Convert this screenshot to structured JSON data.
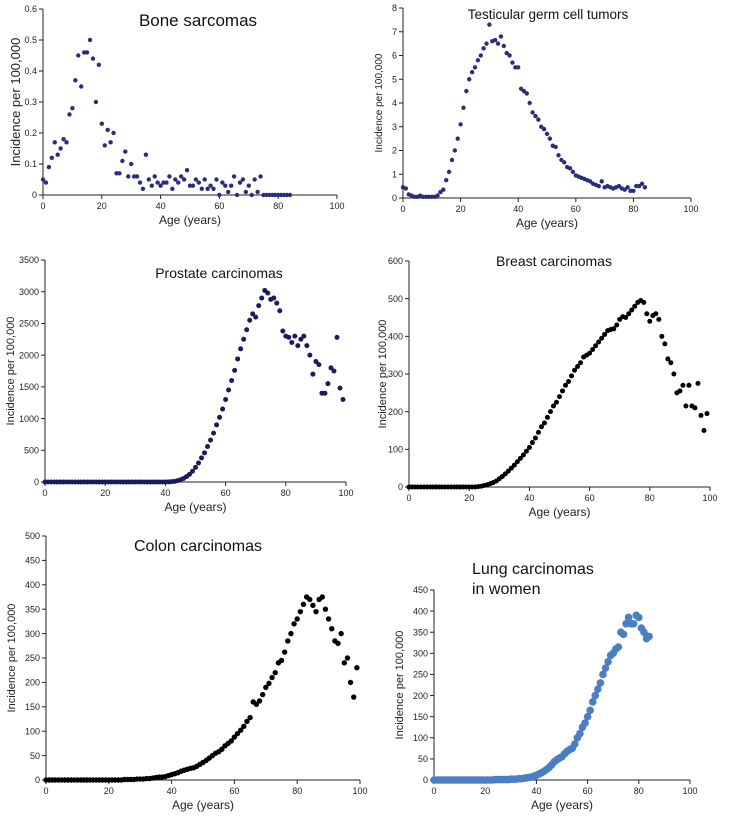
{
  "chart_data": [
    {
      "id": "bone",
      "type": "scatter",
      "title": "Bone sarcomas",
      "xlabel": "Age (years)",
      "ylabel": "Incidence per 100,000",
      "xlim": [
        0,
        100
      ],
      "ylim": [
        0,
        0.6
      ],
      "xticks": [
        0,
        20,
        40,
        60,
        80,
        100
      ],
      "yticks": [
        0,
        0.1,
        0.2,
        0.3,
        0.4,
        0.5,
        0.6
      ],
      "yticklabels": [
        "0",
        "0.1",
        "0.2",
        "0.3",
        "0.4",
        "0.5",
        "0.6"
      ],
      "color": "#2b2d7a",
      "x": [
        0,
        1,
        2,
        3,
        4,
        5,
        6,
        7,
        8,
        9,
        10,
        11,
        12,
        13,
        14,
        15,
        16,
        17,
        18,
        19,
        20,
        21,
        22,
        23,
        24,
        25,
        26,
        27,
        28,
        29,
        30,
        31,
        32,
        33,
        34,
        35,
        36,
        37,
        38,
        39,
        40,
        41,
        42,
        43,
        44,
        45,
        46,
        47,
        48,
        49,
        50,
        51,
        52,
        53,
        54,
        55,
        56,
        57,
        58,
        59,
        60,
        61,
        62,
        63,
        64,
        65,
        66,
        67,
        68,
        69,
        70,
        71,
        72,
        73,
        74,
        75,
        76,
        77,
        78,
        79,
        80,
        81,
        82,
        83,
        84
      ],
      "y": [
        0.05,
        0.04,
        0.09,
        0.12,
        0.17,
        0.13,
        0.15,
        0.18,
        0.17,
        0.26,
        0.28,
        0.37,
        0.45,
        0.35,
        0.46,
        0.46,
        0.5,
        0.44,
        0.3,
        0.42,
        0.23,
        0.16,
        0.21,
        0.17,
        0.2,
        0.07,
        0.07,
        0.11,
        0.14,
        0.06,
        0.1,
        0.06,
        0.06,
        0.04,
        0.02,
        0.13,
        0.05,
        0.03,
        0.06,
        0.04,
        0.03,
        0.04,
        0.04,
        0.06,
        0.02,
        0.05,
        0.04,
        0.06,
        0.05,
        0.08,
        0.03,
        0.03,
        0.05,
        0.04,
        0.02,
        0.05,
        0.02,
        0.03,
        0.02,
        0.05,
        0.0,
        0.04,
        0.03,
        0.01,
        0.03,
        0.06,
        0.0,
        0.04,
        0.05,
        0.01,
        0.03,
        0.0,
        0.05,
        0.01,
        0.06,
        0.0,
        0.0,
        0.0,
        0.0,
        0.0,
        0.0,
        0.0,
        0.0,
        0.0,
        0.0
      ]
    },
    {
      "id": "testicular",
      "type": "scatter",
      "title": "Testicular germ cell tumors",
      "xlabel": "Age (years)",
      "ylabel": "Incidence per 100,000",
      "xlim": [
        0,
        100
      ],
      "ylim": [
        0,
        8
      ],
      "xticks": [
        0,
        20,
        40,
        60,
        80,
        100
      ],
      "yticks": [
        0,
        1,
        2,
        3,
        4,
        5,
        6,
        7,
        8
      ],
      "yticklabels": [
        "0",
        "1",
        "2",
        "3",
        "4",
        "5",
        "6",
        "7",
        "8"
      ],
      "color": "#2b2d7a",
      "x": [
        0,
        1,
        2,
        3,
        4,
        5,
        6,
        7,
        8,
        9,
        10,
        11,
        12,
        13,
        14,
        15,
        16,
        17,
        18,
        19,
        20,
        21,
        22,
        23,
        24,
        25,
        26,
        27,
        28,
        29,
        30,
        31,
        32,
        33,
        34,
        35,
        36,
        37,
        38,
        39,
        40,
        41,
        42,
        43,
        44,
        45,
        46,
        47,
        48,
        49,
        50,
        51,
        52,
        53,
        54,
        55,
        56,
        57,
        58,
        59,
        60,
        61,
        62,
        63,
        64,
        65,
        66,
        67,
        68,
        69,
        70,
        71,
        72,
        73,
        74,
        75,
        76,
        77,
        78,
        79,
        80,
        81,
        82,
        83,
        84
      ],
      "y": [
        0.45,
        0.4,
        0.15,
        0.1,
        0.05,
        0.05,
        0.1,
        0.05,
        0.05,
        0.05,
        0.05,
        0.05,
        0.1,
        0.25,
        0.35,
        0.75,
        1.1,
        1.6,
        2.0,
        2.5,
        3.1,
        3.8,
        4.5,
        5.0,
        5.3,
        5.5,
        5.8,
        6.0,
        6.3,
        6.5,
        7.3,
        6.6,
        6.65,
        6.5,
        6.8,
        6.4,
        6.1,
        6.0,
        5.7,
        5.5,
        5.5,
        4.6,
        4.5,
        4.4,
        4.0,
        3.6,
        3.45,
        3.3,
        3.0,
        2.9,
        2.7,
        2.5,
        2.2,
        2.15,
        1.8,
        1.6,
        1.5,
        1.3,
        1.25,
        1.1,
        0.95,
        0.9,
        0.85,
        0.8,
        0.75,
        0.7,
        0.6,
        0.55,
        0.5,
        0.7,
        0.45,
        0.5,
        0.45,
        0.4,
        0.45,
        0.5,
        0.4,
        0.35,
        0.45,
        0.3,
        0.3,
        0.5,
        0.5,
        0.6,
        0.45
      ]
    },
    {
      "id": "prostate",
      "type": "scatter",
      "title": "Prostate carcinomas",
      "xlabel": "Age (years)",
      "ylabel": "Incidence per 100,000",
      "xlim": [
        0,
        100
      ],
      "ylim": [
        0,
        3500
      ],
      "xticks": [
        0,
        20,
        40,
        60,
        80,
        100
      ],
      "yticks": [
        0,
        500,
        1000,
        1500,
        2000,
        2500,
        3000,
        3500
      ],
      "yticklabels": [
        "0",
        "500",
        "1000",
        "1500",
        "2000",
        "2500",
        "3000",
        "3500"
      ],
      "color": "#1a1a5c",
      "x": [
        0,
        1,
        2,
        3,
        4,
        5,
        6,
        7,
        8,
        9,
        10,
        11,
        12,
        13,
        14,
        15,
        16,
        17,
        18,
        19,
        20,
        21,
        22,
        23,
        24,
        25,
        26,
        27,
        28,
        29,
        30,
        31,
        32,
        33,
        34,
        35,
        36,
        37,
        38,
        39,
        40,
        41,
        42,
        43,
        44,
        45,
        46,
        47,
        48,
        49,
        50,
        51,
        52,
        53,
        54,
        55,
        56,
        57,
        58,
        59,
        60,
        61,
        62,
        63,
        64,
        65,
        66,
        67,
        68,
        69,
        70,
        71,
        72,
        73,
        74,
        75,
        76,
        77,
        78,
        79,
        80,
        81,
        82,
        83,
        84,
        85,
        86,
        87,
        88,
        89,
        90,
        91,
        92,
        93,
        94,
        95,
        96,
        97,
        98,
        99
      ],
      "y": [
        0,
        0,
        0,
        0,
        0,
        0,
        0,
        0,
        0,
        0,
        0,
        0,
        0,
        0,
        0,
        0,
        0,
        0,
        0,
        0,
        0,
        0,
        0,
        0,
        0,
        0,
        0,
        0,
        0,
        0,
        0,
        0,
        0,
        0,
        0,
        0,
        0,
        0,
        0,
        0,
        0,
        2,
        5,
        10,
        20,
        35,
        55,
        85,
        120,
        170,
        230,
        300,
        380,
        460,
        560,
        660,
        770,
        900,
        1020,
        1150,
        1300,
        1450,
        1600,
        1760,
        1940,
        2100,
        2250,
        2400,
        2550,
        2650,
        2600,
        2780,
        2900,
        3020,
        2980,
        2880,
        2900,
        2820,
        2700,
        2380,
        2300,
        2280,
        2200,
        2300,
        2150,
        2250,
        2300,
        2150,
        2000,
        1700,
        1900,
        1850,
        1400,
        1400,
        1550,
        1800,
        1750,
        2280,
        1480,
        1300
      ]
    },
    {
      "id": "breast",
      "type": "scatter",
      "title": "Breast carcinomas",
      "xlabel": "Age (years)",
      "ylabel": "Incidence per 100,000",
      "xlim": [
        0,
        100
      ],
      "ylim": [
        0,
        600
      ],
      "xticks": [
        0,
        20,
        40,
        60,
        80,
        100
      ],
      "yticks": [
        0,
        100,
        200,
        300,
        400,
        500,
        600
      ],
      "yticklabels": [
        "0",
        "100",
        "200",
        "300",
        "400",
        "500",
        "600"
      ],
      "color": "#000000",
      "x": [
        0,
        1,
        2,
        3,
        4,
        5,
        6,
        7,
        8,
        9,
        10,
        11,
        12,
        13,
        14,
        15,
        16,
        17,
        18,
        19,
        20,
        21,
        22,
        23,
        24,
        25,
        26,
        27,
        28,
        29,
        30,
        31,
        32,
        33,
        34,
        35,
        36,
        37,
        38,
        39,
        40,
        41,
        42,
        43,
        44,
        45,
        46,
        47,
        48,
        49,
        50,
        51,
        52,
        53,
        54,
        55,
        56,
        57,
        58,
        59,
        60,
        61,
        62,
        63,
        64,
        65,
        66,
        67,
        68,
        69,
        70,
        71,
        72,
        73,
        74,
        75,
        76,
        77,
        78,
        79,
        80,
        81,
        82,
        83,
        84,
        85,
        86,
        87,
        88,
        89,
        90,
        91,
        92,
        93,
        94,
        95,
        96,
        97,
        98,
        99
      ],
      "y": [
        0,
        0,
        0,
        0,
        0,
        0,
        0,
        0,
        0,
        0,
        0,
        0,
        0,
        0,
        0,
        0,
        0,
        0,
        0,
        0,
        0,
        0,
        0,
        1,
        2,
        4,
        6,
        9,
        12,
        16,
        22,
        28,
        35,
        42,
        50,
        58,
        67,
        76,
        85,
        95,
        105,
        118,
        130,
        145,
        160,
        170,
        185,
        200,
        215,
        225,
        240,
        255,
        270,
        280,
        295,
        310,
        320,
        330,
        345,
        350,
        355,
        365,
        375,
        385,
        395,
        405,
        415,
        418,
        420,
        430,
        445,
        452,
        450,
        460,
        470,
        480,
        490,
        495,
        490,
        460,
        440,
        455,
        460,
        445,
        400,
        380,
        340,
        330,
        300,
        250,
        255,
        270,
        215,
        270,
        215,
        210,
        275,
        190,
        150,
        195
      ]
    },
    {
      "id": "colon",
      "type": "scatter",
      "title": "Colon carcinomas",
      "xlabel": "Age (years)",
      "ylabel": "Incidence per 100,000",
      "xlim": [
        0,
        100
      ],
      "ylim": [
        0,
        500
      ],
      "xticks": [
        0,
        20,
        40,
        60,
        80,
        100
      ],
      "yticks": [
        0,
        50,
        100,
        150,
        200,
        250,
        300,
        350,
        400,
        450,
        500
      ],
      "yticklabels": [
        "0",
        "50",
        "100",
        "150",
        "200",
        "250",
        "300",
        "350",
        "400",
        "450",
        "500"
      ],
      "color": "#000000",
      "x": [
        0,
        1,
        2,
        3,
        4,
        5,
        6,
        7,
        8,
        9,
        10,
        11,
        12,
        13,
        14,
        15,
        16,
        17,
        18,
        19,
        20,
        21,
        22,
        23,
        24,
        25,
        26,
        27,
        28,
        29,
        30,
        31,
        32,
        33,
        34,
        35,
        36,
        37,
        38,
        39,
        40,
        41,
        42,
        43,
        44,
        45,
        46,
        47,
        48,
        49,
        50,
        51,
        52,
        53,
        54,
        55,
        56,
        57,
        58,
        59,
        60,
        61,
        62,
        63,
        64,
        65,
        66,
        67,
        68,
        69,
        70,
        71,
        72,
        73,
        74,
        75,
        76,
        77,
        78,
        79,
        80,
        81,
        82,
        83,
        84,
        85,
        86,
        87,
        88,
        89,
        90,
        91,
        92,
        93,
        94,
        95,
        96,
        97,
        98,
        99
      ],
      "y": [
        0,
        0,
        0,
        0,
        0,
        0,
        0,
        0,
        0,
        0,
        0,
        0,
        0,
        0,
        0,
        0,
        0,
        0,
        0,
        0,
        0,
        0,
        0,
        0,
        0,
        1,
        1,
        1,
        1,
        2,
        2,
        2,
        3,
        3,
        4,
        5,
        6,
        6,
        7,
        9,
        11,
        13,
        15,
        18,
        20,
        22,
        24,
        25,
        28,
        32,
        36,
        40,
        45,
        50,
        55,
        58,
        63,
        70,
        75,
        80,
        88,
        95,
        102,
        110,
        120,
        128,
        160,
        155,
        162,
        175,
        190,
        198,
        210,
        220,
        240,
        245,
        262,
        285,
        300,
        320,
        330,
        345,
        360,
        375,
        370,
        358,
        345,
        370,
        375,
        350,
        330,
        310,
        285,
        280,
        300,
        240,
        250,
        200,
        170,
        230
      ]
    },
    {
      "id": "lung",
      "type": "scatter",
      "title": "Lung carcinomas\nin women",
      "title_lines": [
        "Lung carcinomas",
        "in women"
      ],
      "xlabel": "Age (years)",
      "ylabel": "Incidence per 100,000",
      "xlim": [
        0,
        100
      ],
      "ylim": [
        0,
        450
      ],
      "xticks": [
        0,
        20,
        40,
        60,
        80,
        100
      ],
      "yticks": [
        0,
        50,
        100,
        150,
        200,
        250,
        300,
        350,
        400,
        450
      ],
      "yticklabels": [
        "0",
        "50",
        "100",
        "150",
        "200",
        "250",
        "300",
        "350",
        "400",
        "450"
      ],
      "color": "#4a7fc1",
      "x": [
        0,
        1,
        2,
        3,
        4,
        5,
        6,
        7,
        8,
        9,
        10,
        11,
        12,
        13,
        14,
        15,
        16,
        17,
        18,
        19,
        20,
        21,
        22,
        23,
        24,
        25,
        26,
        27,
        28,
        29,
        30,
        31,
        32,
        33,
        34,
        35,
        36,
        37,
        38,
        39,
        40,
        41,
        42,
        43,
        44,
        45,
        46,
        47,
        48,
        49,
        50,
        51,
        52,
        53,
        54,
        55,
        56,
        57,
        58,
        59,
        60,
        61,
        62,
        63,
        64,
        65,
        66,
        67,
        68,
        69,
        70,
        71,
        72,
        73,
        74,
        75,
        76,
        77,
        78,
        79,
        80,
        81,
        82,
        83,
        84
      ],
      "y": [
        0,
        0,
        0,
        0,
        0,
        0,
        0,
        0,
        0,
        0,
        0,
        0,
        0,
        0,
        0,
        0,
        0,
        0,
        0,
        0,
        0,
        0,
        0,
        0,
        1,
        1,
        1,
        1,
        1,
        1,
        2,
        2,
        2,
        3,
        3,
        4,
        5,
        6,
        7,
        9,
        11,
        14,
        17,
        21,
        25,
        30,
        36,
        43,
        48,
        52,
        55,
        62,
        68,
        72,
        75,
        85,
        100,
        110,
        125,
        135,
        150,
        165,
        185,
        200,
        215,
        230,
        250,
        265,
        280,
        295,
        300,
        310,
        315,
        350,
        345,
        370,
        385,
        370,
        370,
        390,
        385,
        360,
        350,
        335,
        340
      ]
    }
  ]
}
